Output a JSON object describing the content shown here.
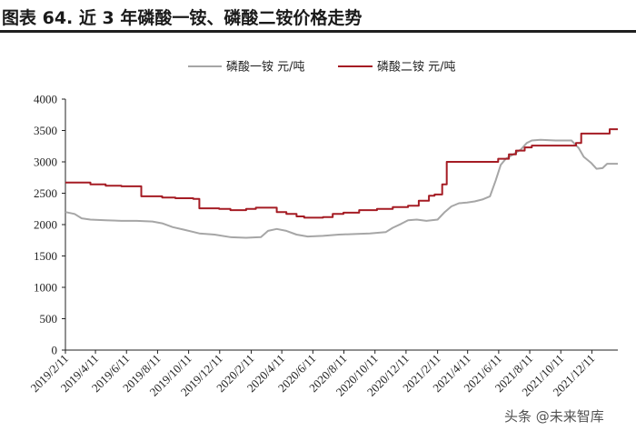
{
  "header": {
    "title": "图表 64. 近 3 年磷酸一铵、磷酸二铵价格走势"
  },
  "watermark": {
    "text": "头条 @未来智库"
  },
  "chart_data": {
    "type": "line",
    "title": "",
    "xlabel": "",
    "ylabel": "",
    "ylim": [
      0,
      4000
    ],
    "yticks": [
      0,
      500,
      1000,
      1500,
      2000,
      2500,
      3000,
      3500,
      4000
    ],
    "xlim_months": [
      "2019/2/11",
      "2022/1/31"
    ],
    "xtick_labels": [
      "2019/2/11",
      "2019/4/11",
      "2019/6/11",
      "2019/8/11",
      "2019/10/11",
      "2019/12/11",
      "2020/2/11",
      "2020/4/11",
      "2020/6/11",
      "2020/8/11",
      "2020/10/11",
      "2020/12/11",
      "2021/2/11",
      "2021/4/11",
      "2021/6/11",
      "2021/8/11",
      "2021/10/11",
      "2021/12/11"
    ],
    "grid": false,
    "legend_position": "top",
    "series": [
      {
        "name": "磷酸一铵 元/吨",
        "color": "#a6a6a6",
        "step": false,
        "points": [
          [
            "2019/2/11",
            2200
          ],
          [
            "2019/3/1",
            2170
          ],
          [
            "2019/3/15",
            2100
          ],
          [
            "2019/4/1",
            2080
          ],
          [
            "2019/5/1",
            2070
          ],
          [
            "2019/6/1",
            2060
          ],
          [
            "2019/7/1",
            2060
          ],
          [
            "2019/8/1",
            2050
          ],
          [
            "2019/8/20",
            2020
          ],
          [
            "2019/9/10",
            1960
          ],
          [
            "2019/10/1",
            1920
          ],
          [
            "2019/11/1",
            1860
          ],
          [
            "2019/12/1",
            1840
          ],
          [
            "2020/1/1",
            1800
          ],
          [
            "2020/2/1",
            1790
          ],
          [
            "2020/3/1",
            1800
          ],
          [
            "2020/3/15",
            1900
          ],
          [
            "2020/4/1",
            1930
          ],
          [
            "2020/4/20",
            1900
          ],
          [
            "2020/5/10",
            1840
          ],
          [
            "2020/6/1",
            1810
          ],
          [
            "2020/7/1",
            1820
          ],
          [
            "2020/8/1",
            1840
          ],
          [
            "2020/9/1",
            1850
          ],
          [
            "2020/10/1",
            1860
          ],
          [
            "2020/11/1",
            1880
          ],
          [
            "2020/11/15",
            1950
          ],
          [
            "2020/12/1",
            2010
          ],
          [
            "2020/12/15",
            2070
          ],
          [
            "2021/1/1",
            2080
          ],
          [
            "2021/1/20",
            2060
          ],
          [
            "2021/2/11",
            2080
          ],
          [
            "2021/2/25",
            2200
          ],
          [
            "2021/3/10",
            2290
          ],
          [
            "2021/3/25",
            2340
          ],
          [
            "2021/4/10",
            2350
          ],
          [
            "2021/4/25",
            2370
          ],
          [
            "2021/5/10",
            2400
          ],
          [
            "2021/5/25",
            2450
          ],
          [
            "2021/6/5",
            2700
          ],
          [
            "2021/6/15",
            2950
          ],
          [
            "2021/6/25",
            3050
          ],
          [
            "2021/7/10",
            3120
          ],
          [
            "2021/7/25",
            3200
          ],
          [
            "2021/8/5",
            3300
          ],
          [
            "2021/8/15",
            3340
          ],
          [
            "2021/9/1",
            3350
          ],
          [
            "2021/10/1",
            3340
          ],
          [
            "2021/11/1",
            3340
          ],
          [
            "2021/11/15",
            3220
          ],
          [
            "2021/11/25",
            3080
          ],
          [
            "2021/12/10",
            2980
          ],
          [
            "2021/12/20",
            2890
          ],
          [
            "2022/1/1",
            2900
          ],
          [
            "2022/1/10",
            2970
          ],
          [
            "2022/1/31",
            2970
          ]
        ]
      },
      {
        "name": "磷酸二铵 元/吨",
        "color": "#a51c24",
        "step": true,
        "points": [
          [
            "2019/2/11",
            2670
          ],
          [
            "2019/4/1",
            2640
          ],
          [
            "2019/5/1",
            2620
          ],
          [
            "2019/6/1",
            2610
          ],
          [
            "2019/7/10",
            2450
          ],
          [
            "2019/8/20",
            2430
          ],
          [
            "2019/9/15",
            2420
          ],
          [
            "2019/10/20",
            2410
          ],
          [
            "2019/11/1",
            2260
          ],
          [
            "2019/12/10",
            2250
          ],
          [
            "2020/1/1",
            2230
          ],
          [
            "2020/2/1",
            2250
          ],
          [
            "2020/2/20",
            2270
          ],
          [
            "2020/4/1",
            2200
          ],
          [
            "2020/4/20",
            2170
          ],
          [
            "2020/5/10",
            2130
          ],
          [
            "2020/5/25",
            2110
          ],
          [
            "2020/7/1",
            2120
          ],
          [
            "2020/7/20",
            2170
          ],
          [
            "2020/8/10",
            2190
          ],
          [
            "2020/9/10",
            2230
          ],
          [
            "2020/10/15",
            2250
          ],
          [
            "2020/11/15",
            2280
          ],
          [
            "2020/12/15",
            2300
          ],
          [
            "2021/1/5",
            2380
          ],
          [
            "2021/1/25",
            2460
          ],
          [
            "2021/2/5",
            2480
          ],
          [
            "2021/2/20",
            2640
          ],
          [
            "2021/3/1",
            3000
          ],
          [
            "2021/6/10",
            3050
          ],
          [
            "2021/7/1",
            3120
          ],
          [
            "2021/7/15",
            3180
          ],
          [
            "2021/8/1",
            3230
          ],
          [
            "2021/8/15",
            3260
          ],
          [
            "2021/11/10",
            3300
          ],
          [
            "2021/11/20",
            3450
          ],
          [
            "2022/1/15",
            3520
          ],
          [
            "2022/1/31",
            3520
          ]
        ]
      }
    ]
  }
}
